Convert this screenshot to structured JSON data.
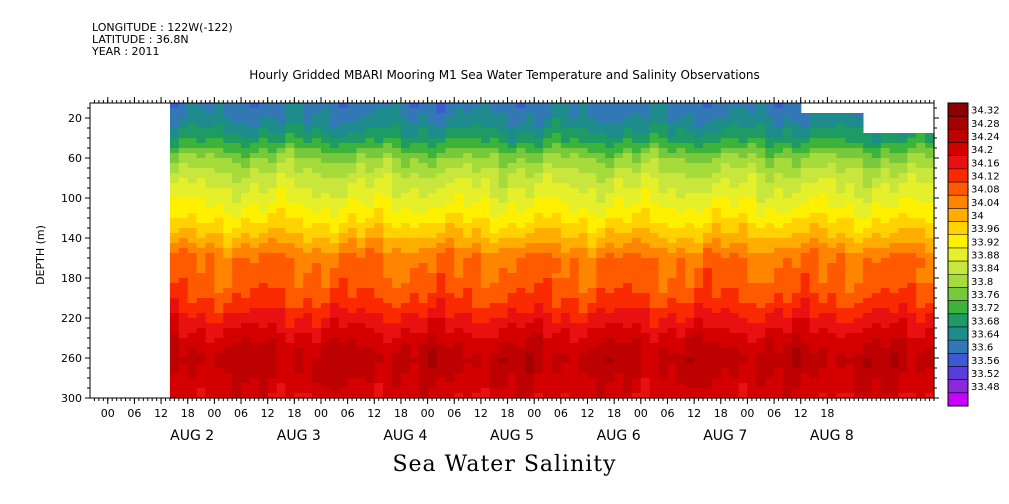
{
  "header": {
    "lines": [
      "LONGITUDE : 122W(-122)",
      "LATITUDE : 36.8N",
      "YEAR : 2011"
    ],
    "title": "Hourly Gridded MBARI Mooring M1 Sea Water Temperature and Salinity Observations"
  },
  "footer": {
    "variable_title": "Sea Water Salinity"
  },
  "chart_data": {
    "type": "heatmap",
    "title": "Hourly Gridded MBARI Mooring M1 Sea Water Temperature and Salinity Observations",
    "subtitle": "Sea Water Salinity",
    "xlabel": "",
    "ylabel": "DEPTH (m)",
    "y_ticks": [
      20,
      60,
      100,
      140,
      180,
      220,
      260,
      300
    ],
    "ylim": [
      300,
      5
    ],
    "y_inverted": true,
    "x_hour_ticks": [
      "00",
      "06",
      "12",
      "18",
      "00",
      "06",
      "12",
      "18",
      "00",
      "06",
      "12",
      "18",
      "00",
      "06",
      "12",
      "18",
      "00",
      "06",
      "12",
      "18",
      "00",
      "06",
      "12",
      "18",
      "00",
      "06",
      "12",
      "18"
    ],
    "x_day_labels": [
      "AUG 2",
      "AUG 3",
      "AUG 4",
      "AUG 5",
      "AUG 6",
      "AUG 7",
      "AUG 8"
    ],
    "x_range_hours": [
      -22,
      168
    ],
    "data_start_hour": -4,
    "colorbar": {
      "labels": [
        "34.32",
        "34.28",
        "34.24",
        "34.2",
        "34.16",
        "34.12",
        "34.08",
        "34.04",
        "34",
        "33.96",
        "33.92",
        "33.88",
        "33.84",
        "33.8",
        "33.76",
        "33.72",
        "33.68",
        "33.64",
        "33.6",
        "33.56",
        "33.52",
        "33.48"
      ],
      "colors": [
        "#8c0000",
        "#a50000",
        "#bd0000",
        "#d40000",
        "#e81010",
        "#fa2a00",
        "#ff5a00",
        "#ff8500",
        "#ffae00",
        "#ffd200",
        "#fff000",
        "#e6f02a",
        "#c8e63c",
        "#a5dc3c",
        "#78c83c",
        "#3cb43c",
        "#1e9a64",
        "#1e8c8c",
        "#3278b4",
        "#3c5ad2",
        "#5a3cdc",
        "#8c28dc",
        "#c800ff"
      ]
    },
    "profile_depth_m": [
      5,
      20,
      40,
      60,
      80,
      100,
      120,
      140,
      160,
      180,
      200,
      220,
      240,
      260,
      280,
      300
    ],
    "profile_salinity": [
      33.62,
      33.64,
      33.7,
      33.8,
      33.86,
      33.9,
      33.95,
      34.01,
      34.08,
      34.09,
      34.12,
      34.17,
      34.22,
      34.26,
      34.24,
      34.21
    ],
    "missing_regions": [
      {
        "hours_from": 139,
        "hours_to": 168,
        "depth_from": 5,
        "depth_to": 14
      },
      {
        "hours_from": 153,
        "hours_to": 168,
        "depth_from": 5,
        "depth_to": 35
      }
    ]
  }
}
